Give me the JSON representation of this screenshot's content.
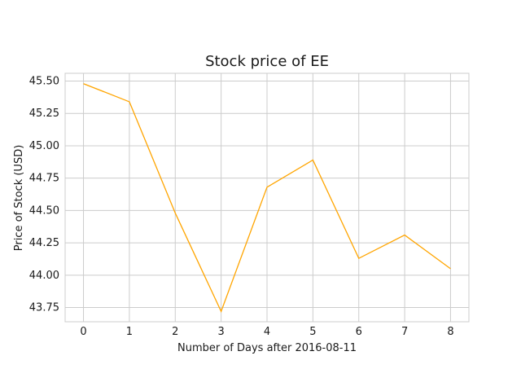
{
  "chart_data": {
    "type": "line",
    "title": "Stock price of EE",
    "xlabel": "Number of Days after 2016-08-11",
    "ylabel": "Price of Stock (USD)",
    "x": [
      0,
      1,
      2,
      3,
      4,
      5,
      6,
      7,
      8
    ],
    "series": [
      {
        "values": [
          45.48,
          45.34,
          44.48,
          43.72,
          44.68,
          44.89,
          44.13,
          44.31,
          44.05
        ]
      }
    ],
    "xlim": [
      -0.4,
      8.4
    ],
    "ylim": [
      43.64,
      45.56
    ],
    "xticks": [
      "0",
      "1",
      "2",
      "3",
      "4",
      "5",
      "6",
      "7",
      "8"
    ],
    "yticks": [
      "43.75",
      "44.00",
      "44.25",
      "44.50",
      "44.75",
      "45.00",
      "45.25",
      "45.50"
    ],
    "grid": true,
    "line_color": "#ffa500",
    "grid_color": "#cccccc",
    "frame_color": "#cccccc"
  }
}
